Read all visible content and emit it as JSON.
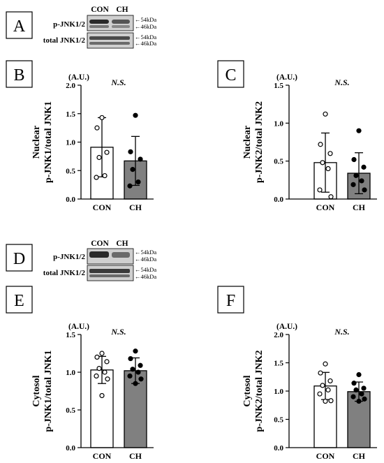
{
  "blot_labels": {
    "con": "CON",
    "ch": "CH",
    "row1": "p-JNK1/2",
    "row2": "total JNK1/2",
    "m54": "←54kDa",
    "m46": "←46kDa"
  },
  "colors": {
    "con_bar": "#ffffff",
    "ch_bar": "#808080",
    "line": "#000000",
    "blot_dark": "#2a2a2a",
    "blot_bg": "#cfcfcf"
  },
  "chart_data": [
    {
      "panel": "B",
      "type": "bar",
      "unit": "(A.U.)",
      "annotation": "N.S.",
      "ylabel": [
        "Nuclear",
        "p-JNK1/total JNK1"
      ],
      "categories": [
        "CON",
        "CH"
      ],
      "ylim": [
        0,
        2.0
      ],
      "yticks": [
        "0.0",
        "0.5",
        "1.0",
        "1.5",
        "2.0"
      ],
      "means": [
        0.91,
        0.67
      ],
      "sd": [
        0.52,
        0.43
      ],
      "points": [
        [
          1.43,
          1.25,
          0.82,
          0.73,
          0.41,
          0.38
        ],
        [
          1.47,
          0.83,
          0.7,
          0.52,
          0.3,
          0.23
        ]
      ]
    },
    {
      "panel": "C",
      "type": "bar",
      "unit": "(A.U.)",
      "annotation": "N.S.",
      "ylabel": [
        "Nuclear",
        "p-JNK2/total JNK2"
      ],
      "categories": [
        "CON",
        "CH"
      ],
      "ylim": [
        0,
        1.5
      ],
      "yticks": [
        "0.0",
        "0.5",
        "1.0",
        "1.5"
      ],
      "means": [
        0.48,
        0.34
      ],
      "sd": [
        0.39,
        0.27
      ],
      "points": [
        [
          1.12,
          0.72,
          0.6,
          0.48,
          0.4,
          0.12,
          0.03
        ],
        [
          0.9,
          0.52,
          0.42,
          0.31,
          0.24,
          0.19,
          0.12
        ]
      ]
    },
    {
      "panel": "E",
      "type": "bar",
      "unit": "(A.U.)",
      "annotation": "N.S.",
      "ylabel": [
        "Cytosol",
        "p-JNK1/total JNK1"
      ],
      "categories": [
        "CON",
        "CH"
      ],
      "ylim": [
        0,
        1.5
      ],
      "yticks": [
        "0.0",
        "0.5",
        "1.0",
        "1.5"
      ],
      "means": [
        1.03,
        1.02
      ],
      "sd": [
        0.18,
        0.17
      ],
      "points": [
        [
          1.25,
          1.2,
          1.14,
          1.05,
          1.0,
          0.95,
          0.91,
          0.69
        ],
        [
          1.28,
          1.18,
          1.09,
          1.04,
          1.0,
          0.95,
          0.91,
          0.85
        ]
      ]
    },
    {
      "panel": "F",
      "type": "bar",
      "unit": "(A.U.)",
      "annotation": "N.S.",
      "ylabel": [
        "Cytosol",
        "p-JNK2/total JNK2"
      ],
      "categories": [
        "CON",
        "CH"
      ],
      "ylim": [
        0,
        2.0
      ],
      "yticks": [
        "0.0",
        "0.5",
        "1.0",
        "1.5",
        "2.0"
      ],
      "means": [
        1.09,
        0.99
      ],
      "sd": [
        0.24,
        0.17
      ],
      "points": [
        [
          1.48,
          1.32,
          1.18,
          1.1,
          1.02,
          0.95,
          0.83,
          0.82
        ],
        [
          1.29,
          1.14,
          1.05,
          1.02,
          0.95,
          0.9,
          0.86,
          0.82
        ]
      ]
    }
  ]
}
